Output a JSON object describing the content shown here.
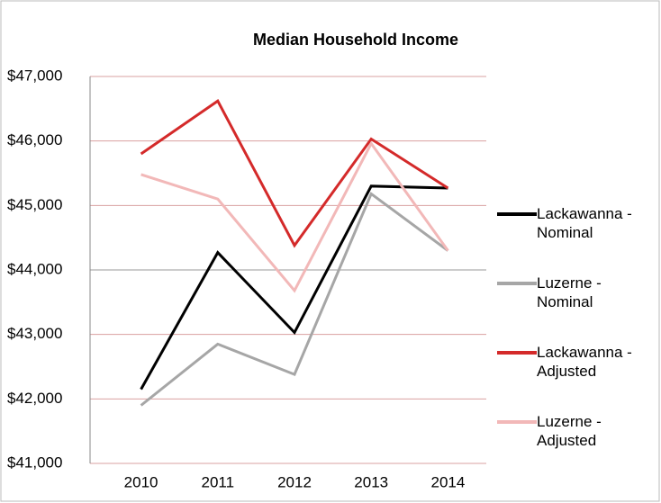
{
  "chart_data": {
    "type": "line",
    "title": "Median Household Income",
    "categories": [
      "2010",
      "2011",
      "2012",
      "2013",
      "2014"
    ],
    "series": [
      {
        "name": "Lackawanna - Nominal",
        "color": "#000000",
        "values": [
          42150,
          44270,
          43030,
          45300,
          45270
        ]
      },
      {
        "name": "Luzerne - Nominal",
        "color": "#a6a6a6",
        "values": [
          41900,
          42850,
          42380,
          45180,
          44300
        ]
      },
      {
        "name": "Lackawanna - Adjusted",
        "color": "#d42a2a",
        "values": [
          45800,
          46620,
          44380,
          46030,
          45270
        ]
      },
      {
        "name": "Luzerne - Adjusted",
        "color": "#f2b8b8",
        "values": [
          45480,
          45100,
          43680,
          45960,
          44300
        ]
      }
    ],
    "ylim": [
      41000,
      47000
    ],
    "yticks": [
      {
        "value": 41000,
        "label": "$41,000"
      },
      {
        "value": 42000,
        "label": "$42,000"
      },
      {
        "value": 43000,
        "label": "$43,000"
      },
      {
        "value": 44000,
        "label": "$44,000"
      },
      {
        "value": 45000,
        "label": "$45,000"
      },
      {
        "value": 46000,
        "label": "$46,000"
      },
      {
        "value": 47000,
        "label": "$47,000"
      }
    ],
    "grid": true,
    "legend": "right"
  }
}
